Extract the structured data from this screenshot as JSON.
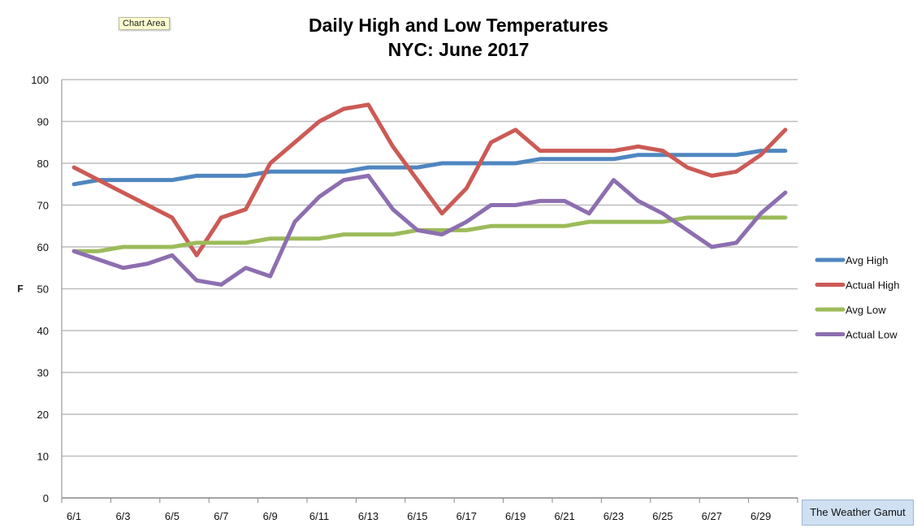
{
  "tooltip": "Chart Area",
  "credit": "The Weather Gamut",
  "chart_data": {
    "type": "line",
    "title": "Daily High and Low Temperatures",
    "subtitle": "NYC: June 2017",
    "xlabel": "",
    "ylabel": "F",
    "ylim": [
      0,
      100
    ],
    "yticks": [
      0,
      10,
      20,
      30,
      40,
      50,
      60,
      70,
      80,
      90,
      100
    ],
    "x": [
      "6/1",
      "6/2",
      "6/3",
      "6/4",
      "6/5",
      "6/6",
      "6/7",
      "6/8",
      "6/9",
      "6/10",
      "6/11",
      "6/12",
      "6/13",
      "6/14",
      "6/15",
      "6/16",
      "6/17",
      "6/18",
      "6/19",
      "6/20",
      "6/21",
      "6/22",
      "6/23",
      "6/24",
      "6/25",
      "6/26",
      "6/27",
      "6/28",
      "6/29",
      "6/30"
    ],
    "xtick_labels": [
      "6/1",
      "6/3",
      "6/5",
      "6/7",
      "6/9",
      "6/11",
      "6/13",
      "6/15",
      "6/17",
      "6/19",
      "6/21",
      "6/23",
      "6/25",
      "6/27",
      "6/29"
    ],
    "grid": true,
    "legend_position": "right",
    "series": [
      {
        "name": "Avg High",
        "color": "#4f86c0",
        "values": [
          75,
          76,
          76,
          76,
          76,
          77,
          77,
          77,
          78,
          78,
          78,
          78,
          79,
          79,
          79,
          80,
          80,
          80,
          80,
          81,
          81,
          81,
          81,
          82,
          82,
          82,
          82,
          82,
          83,
          83
        ]
      },
      {
        "name": "Actual High",
        "color": "#cc5a55",
        "values": [
          79,
          76,
          73,
          70,
          67,
          58,
          67,
          69,
          80,
          85,
          90,
          93,
          94,
          84,
          76,
          68,
          74,
          85,
          88,
          83,
          83,
          83,
          83,
          84,
          83,
          79,
          77,
          78,
          82,
          88
        ]
      },
      {
        "name": "Avg Low",
        "color": "#9bbb59",
        "values": [
          59,
          59,
          60,
          60,
          60,
          61,
          61,
          61,
          62,
          62,
          62,
          63,
          63,
          63,
          64,
          64,
          64,
          65,
          65,
          65,
          65,
          66,
          66,
          66,
          66,
          67,
          67,
          67,
          67,
          67
        ]
      },
      {
        "name": "Actual Low",
        "color": "#8d6eb0",
        "values": [
          59,
          57,
          55,
          56,
          58,
          52,
          51,
          55,
          53,
          66,
          72,
          76,
          77,
          69,
          64,
          63,
          66,
          70,
          70,
          71,
          71,
          68,
          76,
          71,
          68,
          64,
          60,
          61,
          68,
          73
        ]
      }
    ]
  }
}
